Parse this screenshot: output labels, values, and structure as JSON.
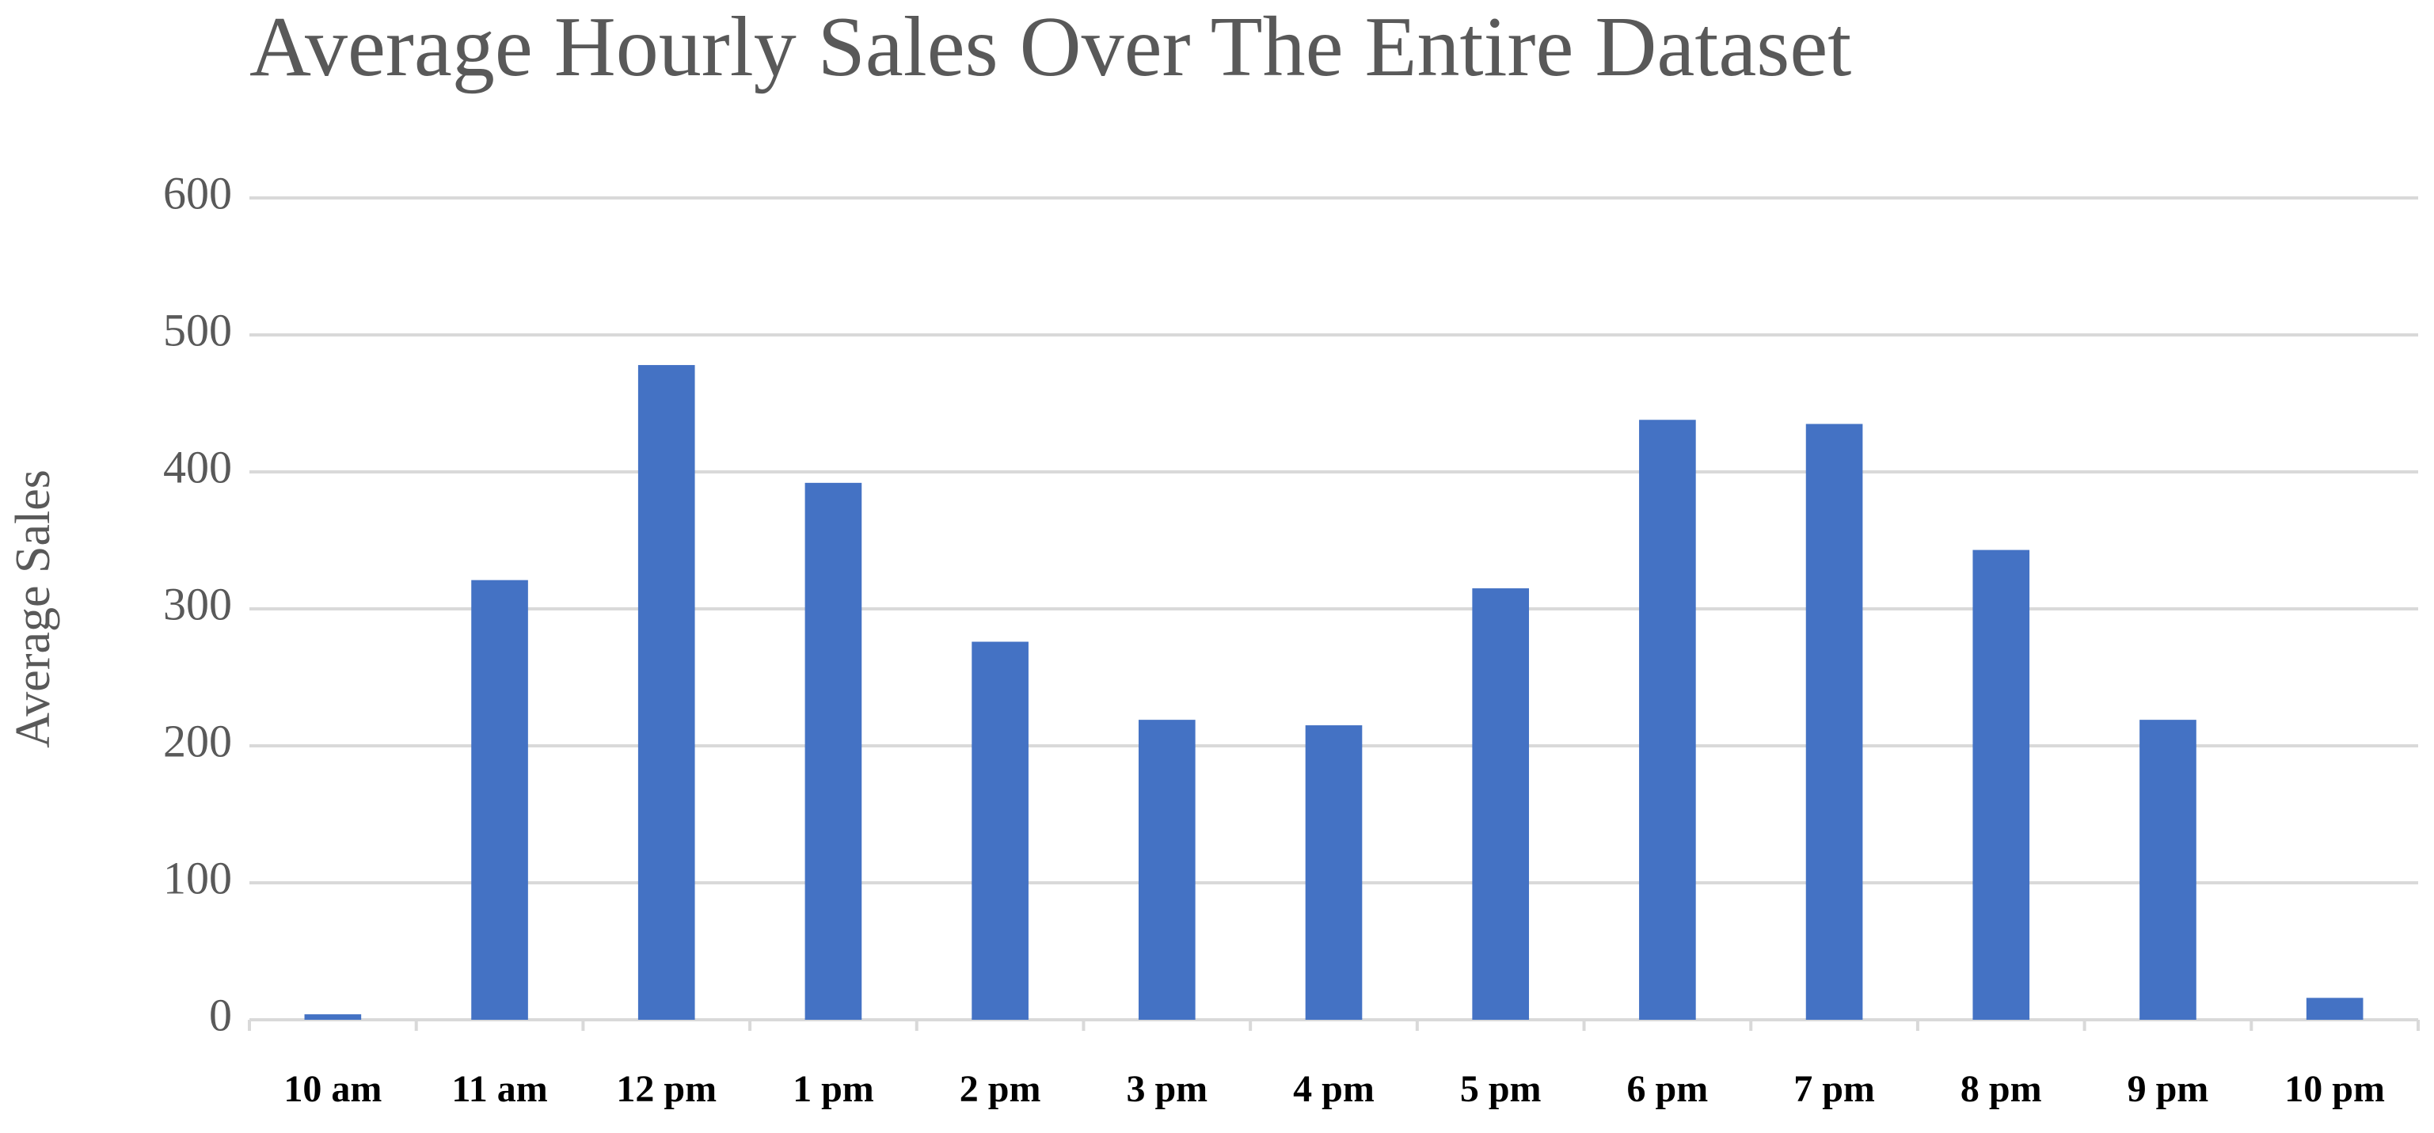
{
  "chart_data": {
    "type": "bar",
    "title": "Average Hourly Sales Over The Entire Dataset",
    "y_label": "Average Sales",
    "categories": [
      "10 am",
      "11 am",
      "12 pm",
      "1 pm",
      "2 pm",
      "3 pm",
      "4 pm",
      "5 pm",
      "6 pm",
      "7 pm",
      "8 pm",
      "9 pm",
      "10 pm"
    ],
    "values": [
      4,
      321,
      478,
      392,
      276,
      219,
      215,
      315,
      438,
      435,
      343,
      219,
      16
    ],
    "color": "#4472c4",
    "ylim": [
      0,
      600
    ],
    "yticks": [
      0,
      100,
      200,
      300,
      400,
      500,
      600
    ],
    "grid": true
  }
}
